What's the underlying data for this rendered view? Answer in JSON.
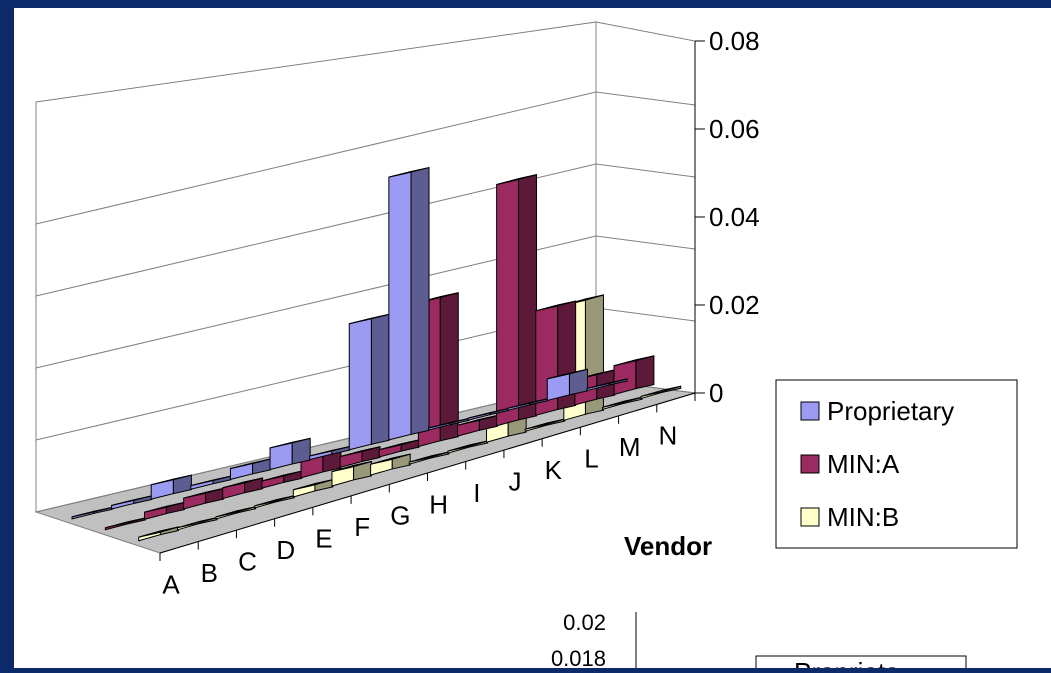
{
  "chart_data": [
    {
      "type": "bar",
      "style": "3d-clustered-column",
      "categories": [
        "A",
        "B",
        "C",
        "D",
        "E",
        "F",
        "G",
        "H",
        "I",
        "J",
        "K",
        "L",
        "M",
        "N"
      ],
      "series": [
        {
          "name": "Proprietary",
          "color": "#9b9bf3",
          "values": [
            0,
            0.001,
            0.004,
            0.001,
            0.003,
            0.006,
            0.001,
            0.035,
            0.073,
            0,
            0,
            0,
            0.006,
            0
          ]
        },
        {
          "name": "MIN:A",
          "color": "#9a2a60",
          "values": [
            0,
            0.002,
            0.003,
            0.003,
            0.002,
            0.005,
            0.003,
            0.002,
            0.04,
            0.003,
            0.067,
            0.029,
            0.007,
            0.008
          ]
        },
        {
          "name": "MIN:B",
          "color": "#ffffcc",
          "values": [
            0.001,
            0,
            0,
            0,
            0.002,
            0.004,
            0.003,
            0,
            0,
            0.005,
            0,
            0.032,
            0,
            0
          ]
        }
      ],
      "ylim": [
        0,
        0.08
      ],
      "yticks": [
        "0",
        "0.02",
        "0.04",
        "0.06",
        "0.08"
      ],
      "xlabel": "Vendor",
      "ylabel": "",
      "grid": true,
      "legend": "right"
    },
    {
      "type": "bar",
      "partial": true,
      "yticks_visible": [
        "0.02",
        "0.018"
      ],
      "legend_visible_fragment": "Proprieta"
    }
  ]
}
